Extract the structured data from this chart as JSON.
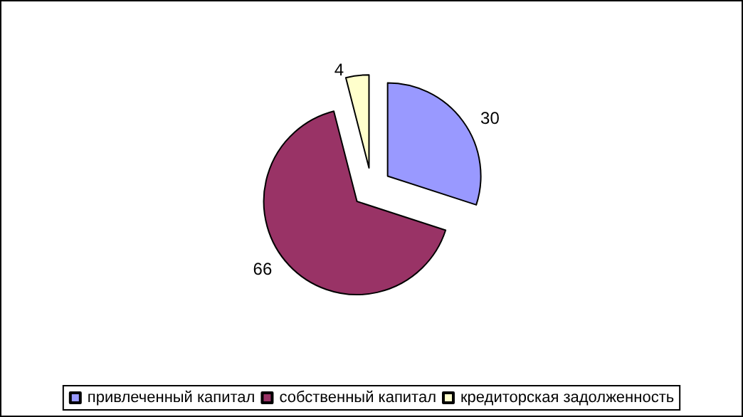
{
  "chart_data": {
    "type": "pie",
    "categories": [
      "привлеченный капитал",
      "собственный капитал",
      "кредиторская задолженность"
    ],
    "values": [
      30,
      66,
      4
    ],
    "colors": [
      "#9999ff",
      "#993366",
      "#ffffcc"
    ],
    "data_labels": true,
    "legend": "bottom"
  }
}
